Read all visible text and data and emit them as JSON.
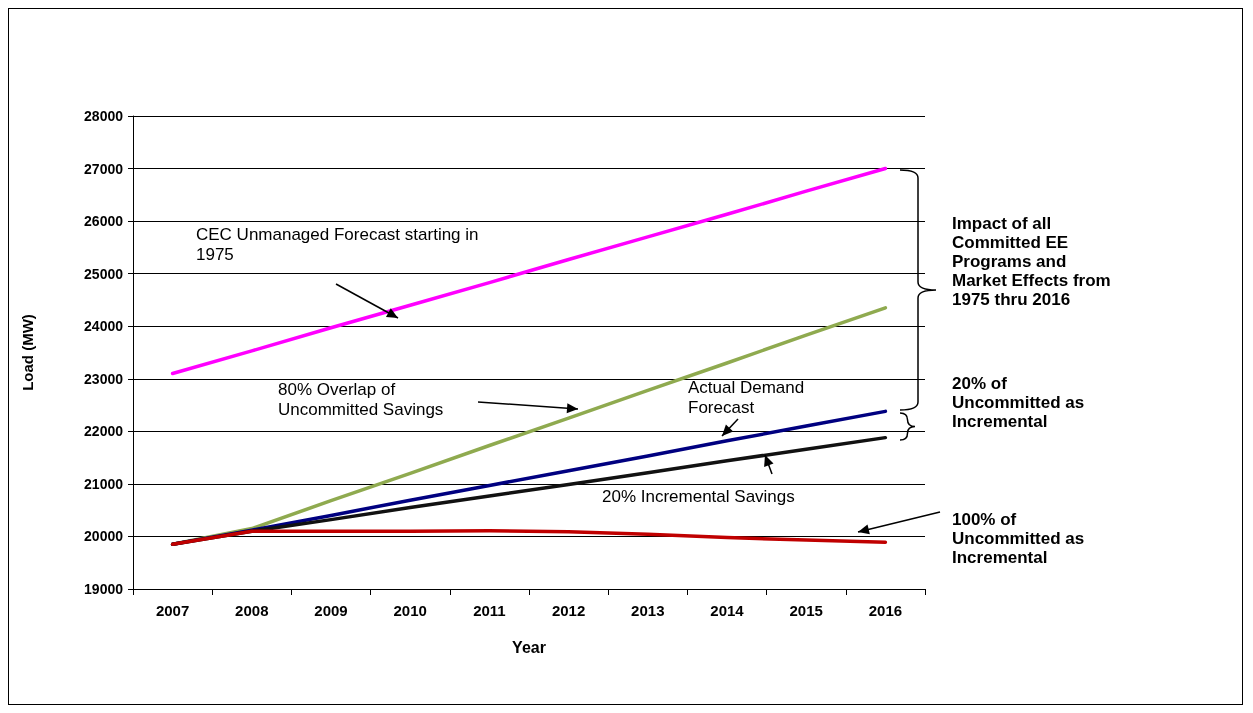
{
  "chart_data": {
    "type": "line",
    "xlabel": "Year",
    "ylabel": "Load (MW)",
    "categories": [
      "2007",
      "2008",
      "2009",
      "2010",
      "2011",
      "2012",
      "2013",
      "2014",
      "2015",
      "2016"
    ],
    "series": [
      {
        "color": "#ff00ff",
        "values": [
          23100,
          23530,
          23970,
          24400,
          24830,
          25270,
          25700,
          26130,
          26570,
          27000
        ]
      },
      {
        "color": "#8faa4f",
        "values": [
          19850,
          20150,
          20680,
          21200,
          21730,
          22250,
          22780,
          23300,
          23830,
          24350
        ]
      },
      {
        "color": "#000080",
        "values": [
          19850,
          20120,
          20400,
          20690,
          20970,
          21250,
          21530,
          21820,
          22100,
          22380
        ]
      },
      {
        "color": "#111111",
        "values": [
          19850,
          20100,
          20320,
          20550,
          20770,
          20990,
          21210,
          21440,
          21660,
          21880
        ]
      },
      {
        "color": "#c00000",
        "values": [
          19850,
          20100,
          20100,
          20100,
          20110,
          20090,
          20040,
          19980,
          19930,
          19890
        ]
      }
    ],
    "ylim": [
      19000,
      28000
    ],
    "yticks": [
      19000,
      20000,
      21000,
      22000,
      23000,
      24000,
      25000,
      26000,
      27000,
      28000
    ],
    "grid": "y",
    "marker": "none",
    "line_style": "solid",
    "annotations": [
      "CEC Unmanaged Forecast starting in 1975",
      "80% Overlap of Uncommitted Savings",
      "Actual Demand Forecast",
      "20% Incremental Savings",
      "Impact of all Committed EE Programs and Market Effects from 1975 thru 2016",
      "20% of Uncommitted as Incremental",
      "100% of Uncommitted as Incremental"
    ]
  }
}
